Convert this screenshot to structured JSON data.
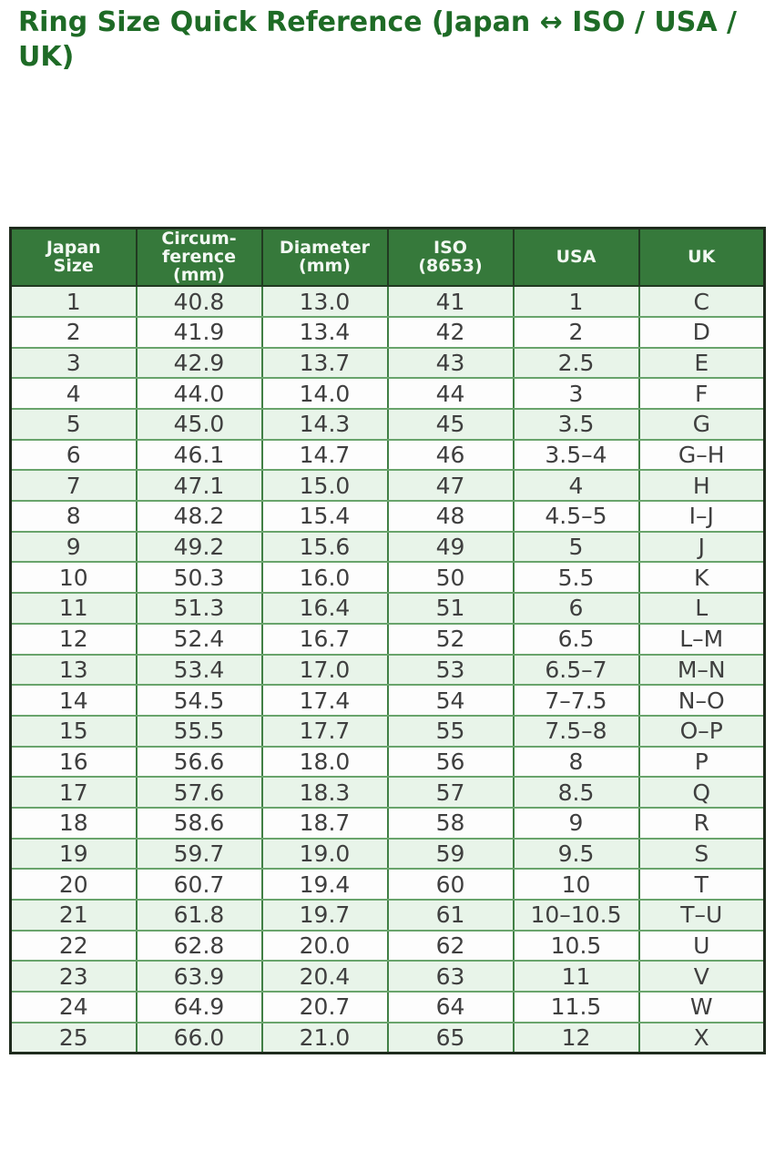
{
  "page": {
    "title": "Ring Size Quick Reference (Japan ↔ ISO / USA / UK)"
  },
  "colors": {
    "title-color": "#1e6b26",
    "header-bg": "#36793b",
    "header-text": "#f2f8f2",
    "row-alt-bg": "#e8f4e9",
    "row-bg": "#fdfdfd",
    "cell-text": "#3f3f3f",
    "border-outer": "#1f2b1d",
    "border-v": "#417f45",
    "border-h": "#69a46c"
  },
  "table": {
    "columns": [
      {
        "key": "japan-size",
        "lines": [
          "Japan",
          "Size"
        ]
      },
      {
        "key": "circumference-mm",
        "lines": [
          "Circum-",
          "ference",
          "(mm)"
        ]
      },
      {
        "key": "diameter-mm",
        "lines": [
          "Diameter",
          "(mm)"
        ]
      },
      {
        "key": "iso-8653",
        "lines": [
          "ISO",
          "(8653)"
        ]
      },
      {
        "key": "usa",
        "lines": [
          "USA"
        ]
      },
      {
        "key": "uk",
        "lines": [
          "UK"
        ]
      }
    ],
    "rows": [
      [
        "1",
        "40.8",
        "13.0",
        "41",
        "1",
        "C"
      ],
      [
        "2",
        "41.9",
        "13.4",
        "42",
        "2",
        "D"
      ],
      [
        "3",
        "42.9",
        "13.7",
        "43",
        "2.5",
        "E"
      ],
      [
        "4",
        "44.0",
        "14.0",
        "44",
        "3",
        "F"
      ],
      [
        "5",
        "45.0",
        "14.3",
        "45",
        "3.5",
        "G"
      ],
      [
        "6",
        "46.1",
        "14.7",
        "46",
        "3.5–4",
        "G–H"
      ],
      [
        "7",
        "47.1",
        "15.0",
        "47",
        "4",
        "H"
      ],
      [
        "8",
        "48.2",
        "15.4",
        "48",
        "4.5–5",
        "I–J"
      ],
      [
        "9",
        "49.2",
        "15.6",
        "49",
        "5",
        "J"
      ],
      [
        "10",
        "50.3",
        "16.0",
        "50",
        "5.5",
        "K"
      ],
      [
        "11",
        "51.3",
        "16.4",
        "51",
        "6",
        "L"
      ],
      [
        "12",
        "52.4",
        "16.7",
        "52",
        "6.5",
        "L–M"
      ],
      [
        "13",
        "53.4",
        "17.0",
        "53",
        "6.5–7",
        "M–N"
      ],
      [
        "14",
        "54.5",
        "17.4",
        "54",
        "7–7.5",
        "N–O"
      ],
      [
        "15",
        "55.5",
        "17.7",
        "55",
        "7.5–8",
        "O–P"
      ],
      [
        "16",
        "56.6",
        "18.0",
        "56",
        "8",
        "P"
      ],
      [
        "17",
        "57.6",
        "18.3",
        "57",
        "8.5",
        "Q"
      ],
      [
        "18",
        "58.6",
        "18.7",
        "58",
        "9",
        "R"
      ],
      [
        "19",
        "59.7",
        "19.0",
        "59",
        "9.5",
        "S"
      ],
      [
        "20",
        "60.7",
        "19.4",
        "60",
        "10",
        "T"
      ],
      [
        "21",
        "61.8",
        "19.7",
        "61",
        "10–10.5",
        "T–U"
      ],
      [
        "22",
        "62.8",
        "20.0",
        "62",
        "10.5",
        "U"
      ],
      [
        "23",
        "63.9",
        "20.4",
        "63",
        "11",
        "V"
      ],
      [
        "24",
        "64.9",
        "20.7",
        "64",
        "11.5",
        "W"
      ],
      [
        "25",
        "66.0",
        "21.0",
        "65",
        "12",
        "X"
      ]
    ]
  }
}
